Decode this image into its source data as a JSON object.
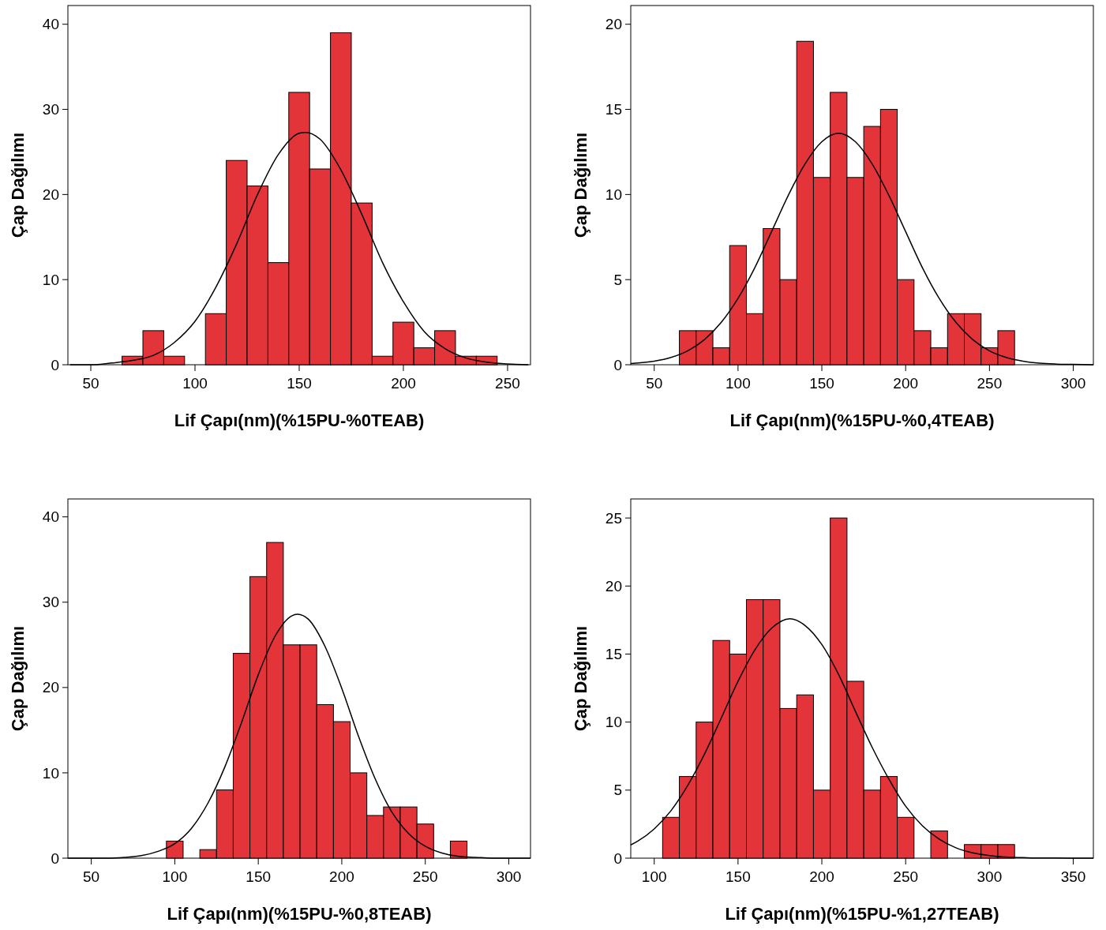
{
  "chart_data": [
    {
      "type": "histogram",
      "xlabel": "Lif Çapı(nm)(%15PU-%0TEAB)",
      "ylabel": "Çap Dağılımı",
      "color": "#e3343a",
      "bins": [
        65,
        75,
        85,
        95,
        105,
        115,
        125,
        135,
        145,
        155,
        165,
        175,
        185,
        195,
        205,
        215,
        225,
        235,
        245
      ],
      "values": [
        1,
        4,
        1,
        0,
        6,
        24,
        21,
        12,
        32,
        23,
        39,
        19,
        1,
        5,
        2,
        4,
        1,
        1
      ],
      "xlim": [
        39,
        261
      ],
      "xticks": [
        50,
        100,
        150,
        200,
        250
      ],
      "ylim": [
        0,
        42.2
      ],
      "yticks": [
        0,
        10,
        20,
        30,
        40
      ],
      "series": [
        {
          "type": "line",
          "color": "#000000",
          "x": [
            40,
            50,
            60,
            70,
            80,
            90,
            100,
            110,
            120,
            130,
            140,
            150,
            153,
            160,
            170,
            180,
            190,
            200,
            210,
            220,
            230,
            240,
            250,
            260
          ],
          "values": [
            0,
            0,
            0.2,
            0.5,
            1.1,
            2.6,
            5.1,
            9.1,
            14.2,
            20.0,
            24.7,
            27.2,
            27.3,
            26.5,
            22.9,
            17.7,
            12.0,
            7.4,
            3.9,
            1.9,
            0.8,
            0.3,
            0.1,
            0
          ]
        }
      ]
    },
    {
      "type": "histogram",
      "xlabel": "Lif Çapı(nm)(%15PU-%0,4TEAB)",
      "ylabel": "Çap Dağılımı",
      "color": "#e3343a",
      "bins": [
        65,
        75,
        85,
        95,
        105,
        115,
        125,
        135,
        145,
        155,
        165,
        175,
        185,
        195,
        205,
        215,
        225,
        235,
        245,
        255,
        265
      ],
      "values": [
        2,
        2,
        1,
        7,
        3,
        8,
        5,
        19,
        11,
        16,
        11,
        14,
        15,
        5,
        2,
        1,
        3,
        3,
        1,
        2
      ],
      "xlim": [
        36,
        312
      ],
      "xticks": [
        50,
        100,
        150,
        200,
        250,
        300
      ],
      "ylim": [
        0,
        21.1
      ],
      "yticks": [
        0,
        5,
        10,
        15,
        20
      ],
      "series": [
        {
          "type": "line",
          "color": "#000000",
          "x": [
            36,
            50,
            60,
            70,
            80,
            90,
            100,
            110,
            120,
            130,
            140,
            150,
            160,
            170,
            180,
            190,
            200,
            210,
            220,
            230,
            240,
            250,
            260,
            270,
            280,
            290,
            300,
            312
          ],
          "values": [
            0.07,
            0.21,
            0.43,
            0.82,
            1.48,
            2.49,
            3.9,
            5.7,
            7.82,
            9.95,
            11.8,
            13.1,
            13.6,
            13.1,
            11.8,
            9.95,
            7.82,
            5.7,
            3.9,
            2.49,
            1.48,
            0.82,
            0.43,
            0.21,
            0.09,
            0.04,
            0.02,
            0
          ]
        }
      ]
    },
    {
      "type": "histogram",
      "xlabel": "Lif Çapı(nm)(%15PU-%0,8TEAB)",
      "ylabel": "Çap Dağılımı",
      "color": "#e3343a",
      "bins": [
        95,
        105,
        115,
        125,
        135,
        145,
        155,
        165,
        175,
        185,
        195,
        205,
        215,
        225,
        235,
        245,
        255,
        265,
        275
      ],
      "values": [
        2,
        0,
        1,
        8,
        24,
        33,
        37,
        25,
        25,
        18,
        16,
        10,
        5,
        6,
        6,
        4,
        0,
        2
      ],
      "xlim": [
        36,
        313
      ],
      "xticks": [
        50,
        100,
        150,
        200,
        250,
        300
      ],
      "ylim": [
        0,
        42.1
      ],
      "yticks": [
        0,
        10,
        20,
        30,
        40
      ],
      "series": [
        {
          "type": "line",
          "color": "#000000",
          "x": [
            36,
            50,
            60,
            70,
            80,
            90,
            100,
            110,
            120,
            130,
            140,
            150,
            160,
            170,
            173.5,
            180,
            190,
            200,
            210,
            220,
            230,
            240,
            250,
            260,
            270,
            280,
            290,
            300,
            313
          ],
          "values": [
            0,
            0,
            0,
            0.1,
            0.3,
            0.8,
            1.7,
            3.5,
            6.5,
            10.7,
            15.9,
            21.5,
            26.0,
            28.4,
            28.6,
            28.0,
            24.8,
            19.9,
            14.3,
            9.3,
            5.4,
            2.9,
            1.4,
            0.6,
            0.2,
            0.1,
            0,
            0,
            0
          ]
        }
      ]
    },
    {
      "type": "histogram",
      "xlabel": "Lif Çapı(nm)(%15PU-%1,27TEAB)",
      "ylabel": "Çap Dağılımı",
      "color": "#e3343a",
      "bins": [
        105,
        115,
        125,
        135,
        145,
        155,
        165,
        175,
        185,
        195,
        205,
        215,
        225,
        235,
        245,
        255,
        265,
        275,
        285,
        295,
        305,
        315
      ],
      "values": [
        3,
        6,
        10,
        16,
        15,
        19,
        19,
        11,
        12,
        5,
        25,
        13,
        5,
        6,
        3,
        0,
        2,
        0,
        1,
        1,
        1
      ],
      "xlim": [
        86,
        362
      ],
      "xticks": [
        100,
        150,
        200,
        250,
        300,
        350
      ],
      "ylim": [
        0,
        26.4
      ],
      "yticks": [
        0,
        5,
        10,
        15,
        20,
        25
      ],
      "series": [
        {
          "type": "line",
          "color": "#000000",
          "x": [
            86,
            90,
            100,
            110,
            120,
            130,
            140,
            150,
            160,
            170,
            181,
            190,
            200,
            210,
            220,
            230,
            240,
            250,
            260,
            270,
            280,
            290,
            300,
            310,
            320,
            330,
            340,
            350,
            362
          ],
          "values": [
            0.97,
            1.24,
            2.15,
            3.49,
            5.35,
            7.65,
            10.3,
            13.0,
            15.3,
            16.9,
            17.6,
            17.1,
            15.7,
            13.5,
            10.8,
            8.15,
            5.81,
            3.82,
            2.38,
            1.4,
            0.76,
            0.39,
            0.19,
            0.08,
            0.04,
            0.01,
            0.01,
            0.0,
            0.0
          ]
        }
      ]
    }
  ]
}
